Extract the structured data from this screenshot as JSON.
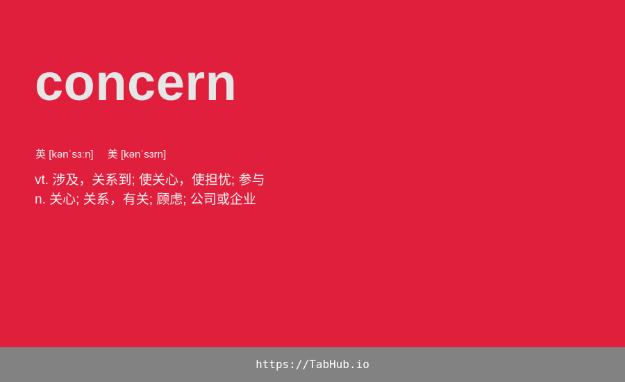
{
  "card": {
    "word": "concern",
    "phonetics": [
      {
        "region": "英",
        "ipa": "[kənˈsɜːn]"
      },
      {
        "region": "美",
        "ipa": "[kənˈsɜrn]"
      }
    ],
    "definitions": [
      {
        "pos": "vt.",
        "meaning": "涉及，关系到; 使关心，使担忧; 参与"
      },
      {
        "pos": "n.",
        "meaning": "关心; 关系，有关; 顾虑; 公司或企业"
      }
    ]
  },
  "footer": {
    "link_text": "https://TabHub.io"
  },
  "colors": {
    "background": "#e01f3d",
    "word": "#e6e6e6",
    "footer": "#828282"
  }
}
